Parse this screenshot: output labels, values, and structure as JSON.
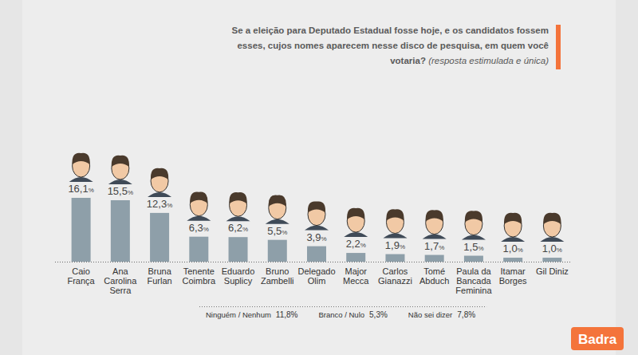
{
  "chart_data": {
    "type": "bar",
    "title": "Se a eleição para Deputado Estadual fosse hoje, e os candidatos fossem esses, cujos nomes aparecem nesse disco de pesquisa, em quem você votaria?",
    "subtitle": "(resposta estimulada e única)",
    "categories": [
      "Caio França",
      "Ana Carolina Serra",
      "Bruna Furlan",
      "Tenente Coimbra",
      "Eduardo Suplicy",
      "Bruno Zambelli",
      "Delegado Olim",
      "Major Mecca",
      "Carlos Gianazzi",
      "Tomé Abduch",
      "Paula da Bancada Feminina",
      "Itamar Borges",
      "Gil Diniz"
    ],
    "values": [
      16.1,
      15.5,
      12.3,
      6.3,
      6.2,
      5.5,
      3.9,
      2.2,
      1.9,
      1.7,
      1.5,
      1.0,
      1.0
    ],
    "value_labels": [
      "16,1%",
      "15,5%",
      "12,3%",
      "6,3%",
      "6,2%",
      "5,5%",
      "3,9%",
      "2,2%",
      "1,9%",
      "1,7%",
      "1,5%",
      "1,0%",
      "1,0%"
    ],
    "color": "#8e9fa9",
    "ylim": [
      0,
      16.1
    ],
    "grid": false,
    "tick_labels": false,
    "data_labels": true,
    "others": [
      {
        "label": "Ninguém / Nenhum",
        "value": 11.8,
        "value_label": "11,8%"
      },
      {
        "label": "Branco / Nulo",
        "value": 5.3,
        "value_label": "5,3%"
      },
      {
        "label": "Não sei dizer",
        "value": 7.8,
        "value_label": "7,8%"
      }
    ],
    "source": "Badra"
  }
}
